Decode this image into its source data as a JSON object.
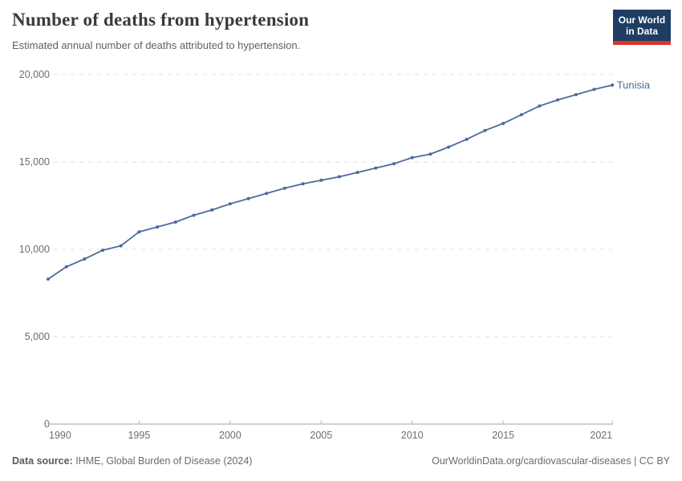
{
  "header": {
    "title": "Number of deaths from hypertension",
    "subtitle": "Estimated annual number of deaths attributed to hypertension."
  },
  "logo": {
    "line1": "Our World",
    "line2": "in Data",
    "bg_color": "#1d3d63",
    "bar_color": "#d8352a"
  },
  "chart_data": {
    "type": "line",
    "title": "Number of deaths from hypertension",
    "x": [
      1990,
      1991,
      1992,
      1993,
      1994,
      1995,
      1996,
      1997,
      1998,
      1999,
      2000,
      2001,
      2002,
      2003,
      2004,
      2005,
      2006,
      2007,
      2008,
      2009,
      2010,
      2011,
      2012,
      2013,
      2014,
      2015,
      2016,
      2017,
      2018,
      2019,
      2020,
      2021
    ],
    "series": [
      {
        "name": "Tunisia",
        "color": "#4c6a9c",
        "values": [
          8300,
          9000,
          9450,
          9950,
          10200,
          11000,
          11280,
          11560,
          11950,
          12250,
          12600,
          12900,
          13200,
          13500,
          13750,
          13950,
          14150,
          14400,
          14650,
          14900,
          15250,
          15450,
          15850,
          16300,
          16800,
          17200,
          17700,
          18200,
          18550,
          18850,
          19150,
          19400
        ]
      }
    ],
    "xlabel": "",
    "ylabel": "",
    "xlim": [
      1990,
      2021
    ],
    "ylim": [
      0,
      20000
    ],
    "xticks": [
      1990,
      1995,
      2000,
      2005,
      2010,
      2015,
      2021
    ],
    "yticks": [
      0,
      5000,
      10000,
      15000,
      20000
    ],
    "ytick_labels": [
      "0",
      "5,000",
      "10,000",
      "15,000",
      "20,000"
    ],
    "grid": "horizontal-dashed",
    "legend_position": "end-of-line-label",
    "end_label": "Tunisia"
  },
  "footer": {
    "source_label": "Data source:",
    "source_text": " IHME, Global Burden of Disease (2024)",
    "credit": "OurWorldinData.org/cardiovascular-diseases | CC BY"
  }
}
